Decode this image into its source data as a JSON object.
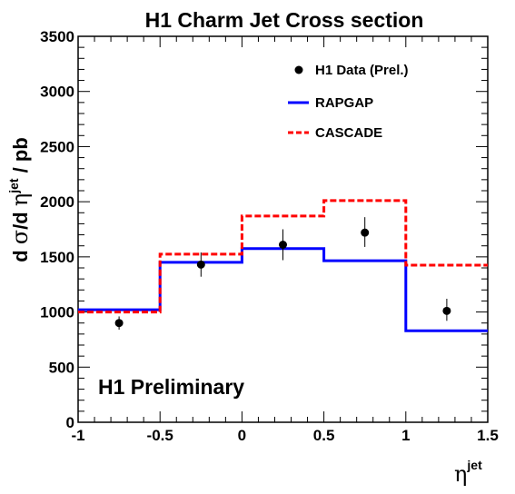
{
  "chart_data": {
    "type": "line",
    "title": "H1 Charm Jet Cross section",
    "ylabel": {
      "prefix": "d ",
      "sym1": "σ",
      "mid": "/d ",
      "sym2": "η",
      "sup": "jet",
      "suffix": " / pb"
    },
    "xlabel": {
      "sym": "η",
      "sup": "jet"
    },
    "xlim": [
      -1,
      1.5
    ],
    "ylim": [
      0,
      3500
    ],
    "x_ticks": [
      -1,
      -0.5,
      0,
      0.5,
      1,
      1.5
    ],
    "x_tick_labels": [
      "-1",
      "-0.5",
      "0",
      "0.5",
      "1",
      "1.5"
    ],
    "y_ticks": [
      0,
      500,
      1000,
      1500,
      2000,
      2500,
      3000,
      3500
    ],
    "y_tick_labels": [
      "0",
      "500",
      "1000",
      "1500",
      "2000",
      "2500",
      "3000",
      "3500"
    ],
    "annotation": "H1 Preliminary",
    "bin_edges": [
      -1,
      -0.5,
      0,
      0.5,
      1,
      1.5
    ],
    "series": [
      {
        "name": "H1 Data (Prel.)",
        "kind": "points",
        "color": "#000000",
        "x": [
          -0.75,
          -0.25,
          0.25,
          0.75,
          1.25
        ],
        "y": [
          900,
          1430,
          1610,
          1720,
          1010
        ],
        "yerr_low": [
          60,
          110,
          140,
          130,
          90
        ],
        "yerr_high": [
          60,
          110,
          140,
          140,
          110
        ]
      },
      {
        "name": "RAPGAP",
        "kind": "step",
        "color": "#0000ff",
        "values": [
          1020,
          1450,
          1575,
          1465,
          830
        ]
      },
      {
        "name": "CASCADE",
        "kind": "step-dashed",
        "color": "#ff0000",
        "values": [
          1000,
          1525,
          1870,
          2010,
          1425
        ]
      }
    ],
    "legend_position": "top-right"
  }
}
